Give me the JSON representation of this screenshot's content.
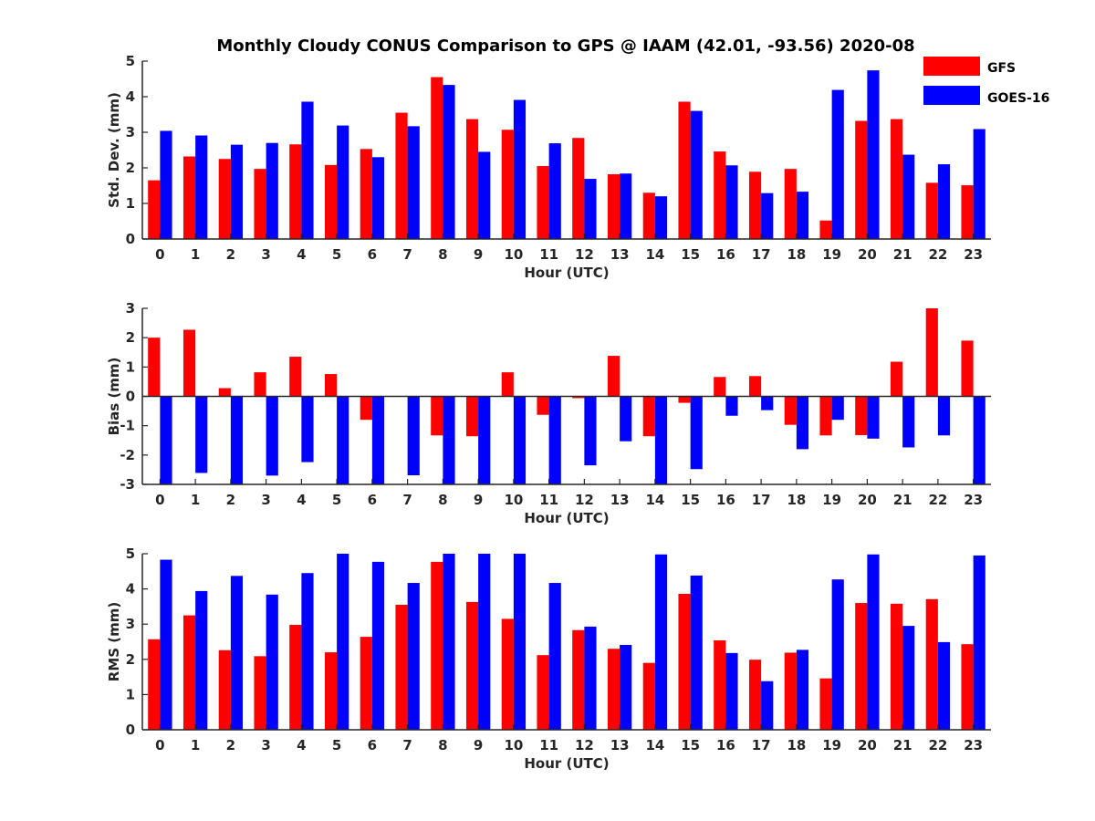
{
  "title": "Monthly Cloudy CONUS Comparison to GPS @ IAAM (42.01, -93.56) 2020-08",
  "legend": [
    {
      "name": "GFS",
      "color": "#ff0000"
    },
    {
      "name": "GOES-16",
      "color": "#0000ff"
    }
  ],
  "chart_data": [
    {
      "type": "bar",
      "categories": [
        "0",
        "1",
        "2",
        "3",
        "4",
        "5",
        "6",
        "7",
        "8",
        "9",
        "10",
        "11",
        "12",
        "13",
        "14",
        "15",
        "16",
        "17",
        "18",
        "19",
        "20",
        "21",
        "22",
        "23"
      ],
      "xlabel": "Hour (UTC)",
      "ylabel": "Std. Dev. (mm)",
      "ylim": [
        0,
        5
      ],
      "yticks": [
        "0",
        "1",
        "2",
        "3",
        "4",
        "5"
      ],
      "grid": false,
      "legend_position": "top-right",
      "series": [
        {
          "name": "GFS",
          "color": "#ff0000",
          "values": [
            1.65,
            2.32,
            2.25,
            1.97,
            2.66,
            2.08,
            2.53,
            3.55,
            4.55,
            3.37,
            3.07,
            2.05,
            2.84,
            1.82,
            1.3,
            3.86,
            2.46,
            1.89,
            1.97,
            0.52,
            3.32,
            3.37,
            1.58,
            1.51
          ]
        },
        {
          "name": "GOES-16",
          "color": "#0000ff",
          "values": [
            3.04,
            2.91,
            2.65,
            2.7,
            3.86,
            3.19,
            2.3,
            3.17,
            4.33,
            2.45,
            3.91,
            2.69,
            1.69,
            1.84,
            1.2,
            3.6,
            2.07,
            1.29,
            1.33,
            4.19,
            4.74,
            2.37,
            2.1,
            3.09
          ]
        }
      ]
    },
    {
      "type": "bar",
      "categories": [
        "0",
        "1",
        "2",
        "3",
        "4",
        "5",
        "6",
        "7",
        "8",
        "9",
        "10",
        "11",
        "12",
        "13",
        "14",
        "15",
        "16",
        "17",
        "18",
        "19",
        "20",
        "21",
        "22",
        "23"
      ],
      "xlabel": "Hour (UTC)",
      "ylabel": "Bias (mm)",
      "ylim": [
        -3,
        3
      ],
      "yticks": [
        "-3",
        "-2",
        "-1",
        "0",
        "1",
        "2",
        "3"
      ],
      "grid": false,
      "series": [
        {
          "name": "GFS",
          "color": "#ff0000",
          "values": [
            2.0,
            2.27,
            0.28,
            0.82,
            1.35,
            0.76,
            -0.8,
            0,
            -1.33,
            -1.36,
            0.82,
            -0.63,
            -0.06,
            1.38,
            -1.36,
            -0.22,
            0.66,
            0.69,
            -0.97,
            -1.33,
            -1.32,
            1.18,
            3.0,
            1.9
          ]
        },
        {
          "name": "GOES-16",
          "color": "#0000ff",
          "values": [
            -3.0,
            -2.61,
            -3.0,
            -2.7,
            -2.24,
            -3.0,
            -3.0,
            -2.69,
            -3.0,
            -3.0,
            -3.0,
            -3.0,
            -2.35,
            -1.53,
            -3.0,
            -2.48,
            -0.66,
            -0.47,
            -1.8,
            -0.8,
            -1.44,
            -1.74,
            -1.33,
            -3.0
          ]
        }
      ]
    },
    {
      "type": "bar",
      "categories": [
        "0",
        "1",
        "2",
        "3",
        "4",
        "5",
        "6",
        "7",
        "8",
        "9",
        "10",
        "11",
        "12",
        "13",
        "14",
        "15",
        "16",
        "17",
        "18",
        "19",
        "20",
        "21",
        "22",
        "23"
      ],
      "xlabel": "Hour (UTC)",
      "ylabel": "RMS (mm)",
      "ylim": [
        0,
        5
      ],
      "yticks": [
        "0",
        "1",
        "2",
        "3",
        "4",
        "5"
      ],
      "grid": false,
      "series": [
        {
          "name": "GFS",
          "color": "#ff0000",
          "values": [
            2.57,
            3.25,
            2.26,
            2.09,
            2.98,
            2.2,
            2.64,
            3.55,
            4.77,
            3.63,
            3.15,
            2.12,
            2.83,
            2.3,
            1.9,
            3.86,
            2.54,
            1.99,
            2.19,
            1.46,
            3.6,
            3.58,
            3.71,
            2.43
          ]
        },
        {
          "name": "GOES-16",
          "color": "#0000ff",
          "values": [
            4.83,
            3.94,
            4.37,
            3.84,
            4.45,
            5.0,
            4.77,
            4.17,
            5.0,
            5.0,
            5.0,
            4.17,
            2.93,
            2.41,
            4.98,
            4.38,
            2.18,
            1.38,
            2.27,
            4.27,
            4.98,
            2.95,
            2.49,
            4.95
          ]
        }
      ]
    }
  ]
}
